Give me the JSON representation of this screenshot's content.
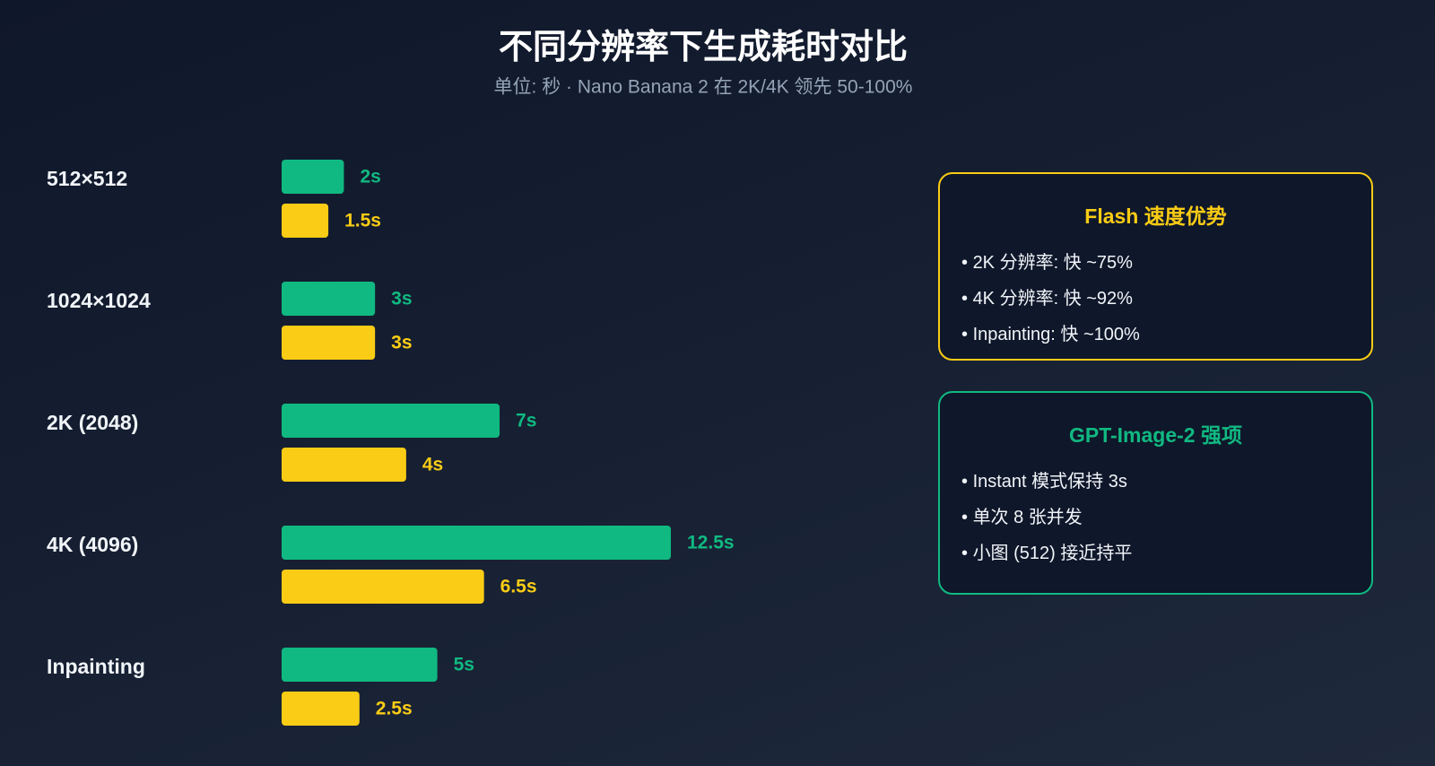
{
  "chart_data": {
    "type": "bar",
    "orientation": "horizontal",
    "title": "不同分辨率下生成耗时对比",
    "subtitle": "单位: 秒 · Nano Banana 2 在 2K/4K 领先 50-100%",
    "categories": [
      "512×512",
      "1024×1024",
      "2K (2048)",
      "4K (4096)",
      "Inpainting"
    ],
    "series": [
      {
        "color": "#10b981",
        "values": [
          2,
          3,
          7,
          12.5,
          5
        ],
        "value_labels": [
          "2s",
          "3s",
          "7s",
          "12.5s",
          "5s"
        ]
      },
      {
        "color": "#facc15",
        "values": [
          1.5,
          3,
          4,
          6.5,
          2.5
        ],
        "value_labels": [
          "1.5s",
          "3s",
          "4s",
          "6.5s",
          "2.5s"
        ]
      }
    ],
    "panels": [
      {
        "title": "Flash 速度优势",
        "color": "#facc15",
        "items": [
          "2K 分辨率: 快 ~75%",
          "4K 分辨率: 快 ~92%",
          "Inpainting: 快 ~100%"
        ]
      },
      {
        "title": "GPT-Image-2 强项",
        "color": "#10b981",
        "items": [
          "Instant 模式保持 3s",
          "单次 8 张并发",
          "小图 (512) 接近持平"
        ]
      }
    ]
  }
}
